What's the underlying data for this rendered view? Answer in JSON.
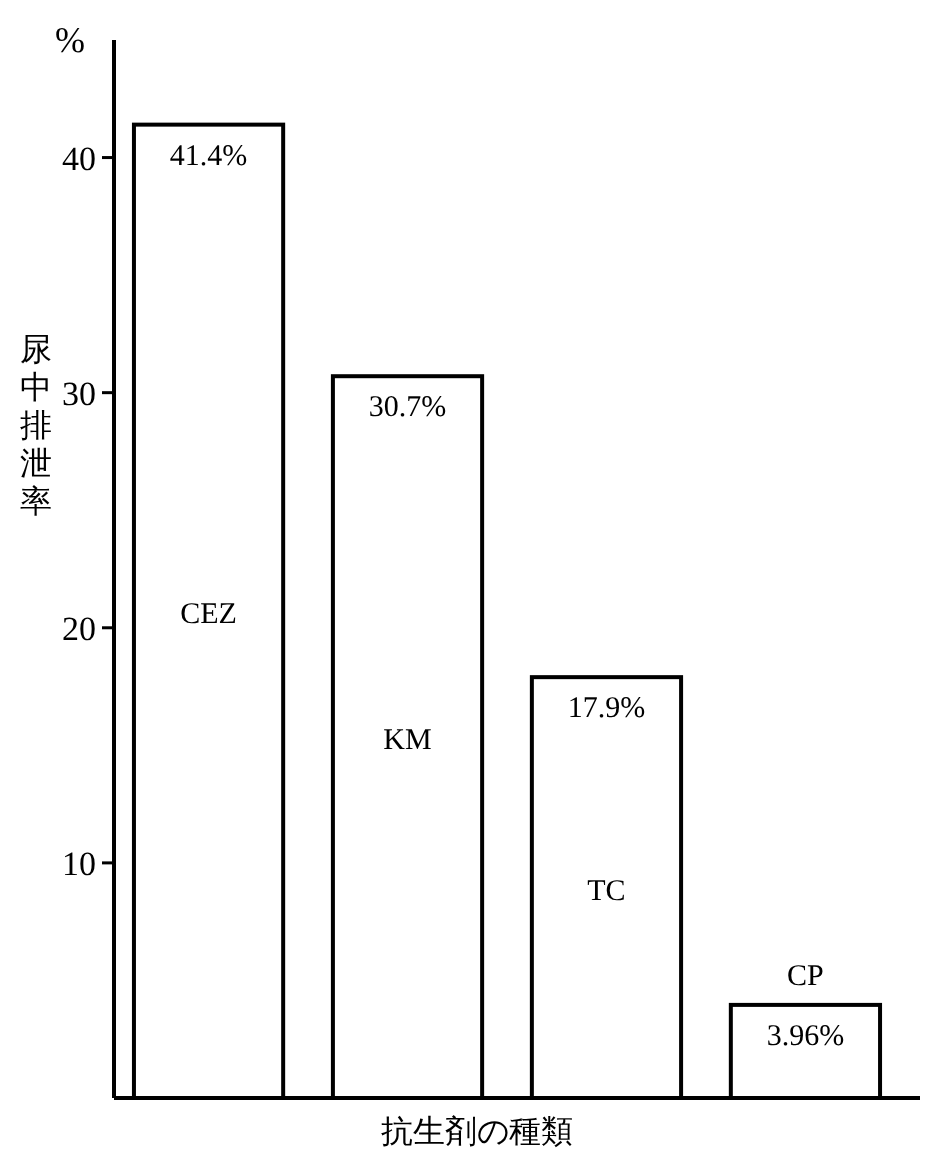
{
  "chart_data": {
    "type": "bar",
    "xlabel": "抗生剤の種類",
    "ylabel": "尿中排泄率",
    "annotations": [
      "%"
    ],
    "categories": [
      "CEZ",
      "KM",
      "TC",
      "CP"
    ],
    "values": [
      41.4,
      30.7,
      17.9,
      3.96
    ],
    "value_labels": [
      "41.4%",
      "30.7%",
      "17.9%",
      "3.96%"
    ],
    "color": "#ffffff",
    "ylim": [
      0,
      45
    ],
    "yticks": [
      10,
      20,
      30,
      40
    ],
    "grid": false
  }
}
